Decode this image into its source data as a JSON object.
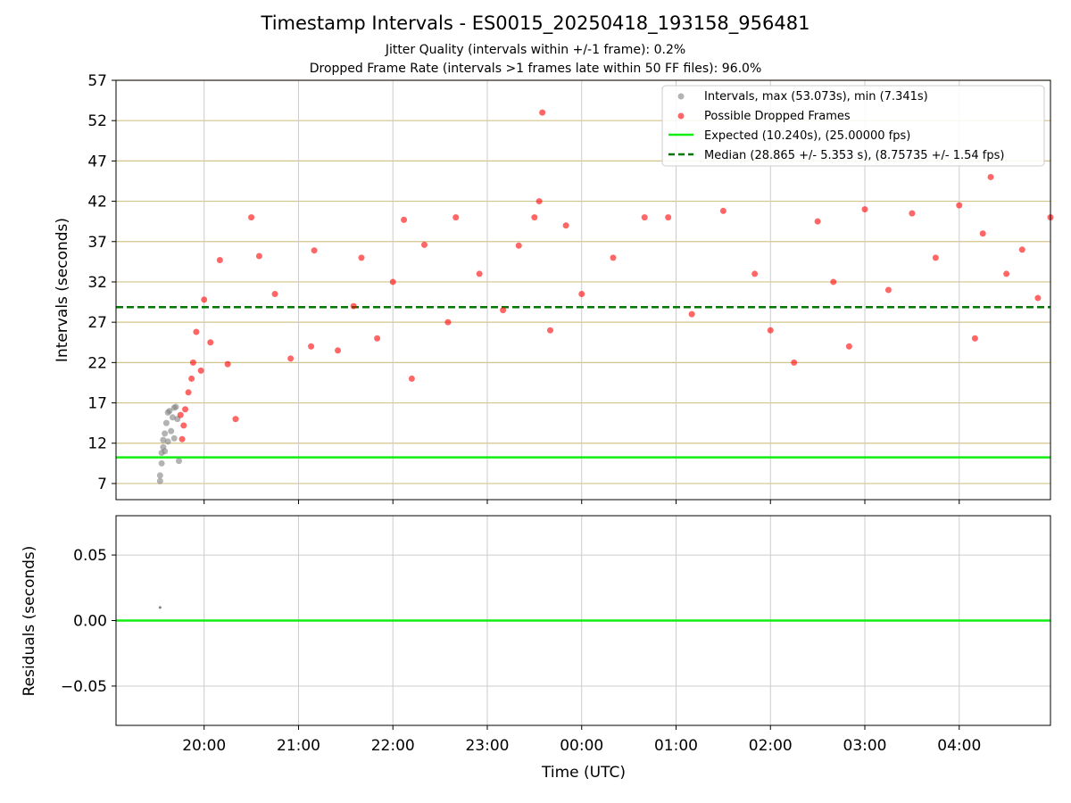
{
  "figure": {
    "title": "Timestamp Intervals - ES0015_20250418_193158_956481",
    "subtitle_1": "Jitter Quality (intervals within +/-1 frame): 0.2%",
    "subtitle_2": "Dropped Frame Rate (intervals >1 frames late within 50 FF files): 96.0%"
  },
  "colors": {
    "intervals": "#808080",
    "dropped": "#ff0000",
    "expected": "#11ee11",
    "median": "#007700",
    "gridline": "#d4c48a",
    "vgrid": "#cccccc"
  },
  "chart_data": [
    {
      "type": "scatter",
      "xlabel": "",
      "ylabel": "Intervals (seconds)",
      "xlim": [
        "19:04",
        "04:58"
      ],
      "ylim": [
        5,
        57
      ],
      "yticks": [
        "7",
        "12",
        "17",
        "22",
        "27",
        "32",
        "37",
        "42",
        "47",
        "52",
        "57"
      ],
      "xticks": [
        "20:00",
        "21:00",
        "22:00",
        "23:00",
        "00:00",
        "01:00",
        "02:00",
        "03:00",
        "04:00"
      ],
      "grid": "on",
      "legend_position": "top-right",
      "legend": [
        "Intervals, max (53.073s), min (7.341s)",
        "Possible Dropped Frames",
        "Expected (10.240s), (25.00000 fps)",
        "Median (28.865 +/- 5.353 s), (8.75735 +/- 1.54 fps)"
      ],
      "expected_interval": 10.24,
      "median_interval": 28.865,
      "series": [
        {
          "name": "Intervals, max (53.073s), min (7.341s)",
          "points": [
            [
              "19:32",
              7.3
            ],
            [
              "19:32",
              8.0
            ],
            [
              "19:33",
              9.5
            ],
            [
              "19:33",
              10.8
            ],
            [
              "19:34",
              11.5
            ],
            [
              "19:34",
              12.4
            ],
            [
              "19:35",
              13.2
            ],
            [
              "19:35",
              11.0
            ],
            [
              "19:36",
              14.5
            ],
            [
              "19:37",
              15.8
            ],
            [
              "19:37",
              12.2
            ],
            [
              "19:38",
              16.0
            ],
            [
              "19:39",
              13.5
            ],
            [
              "19:40",
              15.2
            ],
            [
              "19:41",
              16.4
            ],
            [
              "19:41",
              12.6
            ],
            [
              "19:42",
              16.5
            ],
            [
              "19:43",
              15.0
            ],
            [
              "19:44",
              9.8
            ]
          ]
        },
        {
          "name": "Possible Dropped Frames",
          "values_note": "",
          "points": [
            [
              "19:45",
              15.5
            ],
            [
              "19:46",
              12.5
            ],
            [
              "19:47",
              14.2
            ],
            [
              "19:48",
              16.2
            ],
            [
              "19:50",
              18.3
            ],
            [
              "19:52",
              20.0
            ],
            [
              "19:53",
              22.0
            ],
            [
              "19:55",
              25.8
            ],
            [
              "19:58",
              21.0
            ],
            [
              "20:00",
              29.8
            ],
            [
              "20:04",
              24.5
            ],
            [
              "20:10",
              34.7
            ],
            [
              "20:15",
              21.8
            ],
            [
              "20:20",
              15.0
            ],
            [
              "20:30",
              40.0
            ],
            [
              "20:35",
              35.2
            ],
            [
              "20:45",
              30.5
            ],
            [
              "20:55",
              22.5
            ],
            [
              "21:08",
              24.0
            ],
            [
              "21:10",
              35.9
            ],
            [
              "21:25",
              23.5
            ],
            [
              "21:35",
              29.0
            ],
            [
              "21:40",
              35.0
            ],
            [
              "21:50",
              25.0
            ],
            [
              "22:00",
              32.0
            ],
            [
              "22:07",
              39.7
            ],
            [
              "22:12",
              20.0
            ],
            [
              "22:20",
              36.6
            ],
            [
              "22:35",
              27.0
            ],
            [
              "22:40",
              40.0
            ],
            [
              "22:55",
              33.0
            ],
            [
              "23:10",
              28.5
            ],
            [
              "23:20",
              36.5
            ],
            [
              "23:30",
              40.0
            ],
            [
              "23:33",
              42.0
            ],
            [
              "23:35",
              53.0
            ],
            [
              "23:40",
              26.0
            ],
            [
              "23:50",
              39.0
            ],
            [
              "00:00",
              30.5
            ],
            [
              "00:20",
              35.0
            ],
            [
              "00:40",
              40.0
            ],
            [
              "00:55",
              40.0
            ],
            [
              "01:10",
              28.0
            ],
            [
              "01:30",
              40.8
            ],
            [
              "01:50",
              33.0
            ],
            [
              "02:00",
              26.0
            ],
            [
              "02:15",
              22.0
            ],
            [
              "02:30",
              39.5
            ],
            [
              "02:40",
              32.0
            ],
            [
              "02:50",
              24.0
            ],
            [
              "03:00",
              41.0
            ],
            [
              "03:15",
              31.0
            ],
            [
              "03:30",
              40.5
            ],
            [
              "03:45",
              35.0
            ],
            [
              "04:00",
              41.5
            ],
            [
              "04:10",
              25.0
            ],
            [
              "04:15",
              38.0
            ],
            [
              "04:20",
              45.0
            ],
            [
              "04:30",
              33.0
            ],
            [
              "04:40",
              36.0
            ],
            [
              "04:50",
              30.0
            ],
            [
              "04:58",
              40.0
            ]
          ]
        }
      ]
    },
    {
      "type": "scatter",
      "xlabel": "Time (UTC)",
      "ylabel": "Residuals (seconds)",
      "xlim": [
        "19:04",
        "04:58"
      ],
      "ylim": [
        -0.08,
        0.08
      ],
      "yticks": [
        "0.05",
        "0.00",
        "−0.05"
      ],
      "xticks": [
        "20:00",
        "21:00",
        "22:00",
        "23:00",
        "00:00",
        "01:00",
        "02:00",
        "03:00",
        "04:00"
      ],
      "grid": "on",
      "series": [
        {
          "name": "",
          "points": [
            [
              "19:32",
              0.01
            ]
          ]
        }
      ],
      "zero_line": 0.0
    }
  ]
}
